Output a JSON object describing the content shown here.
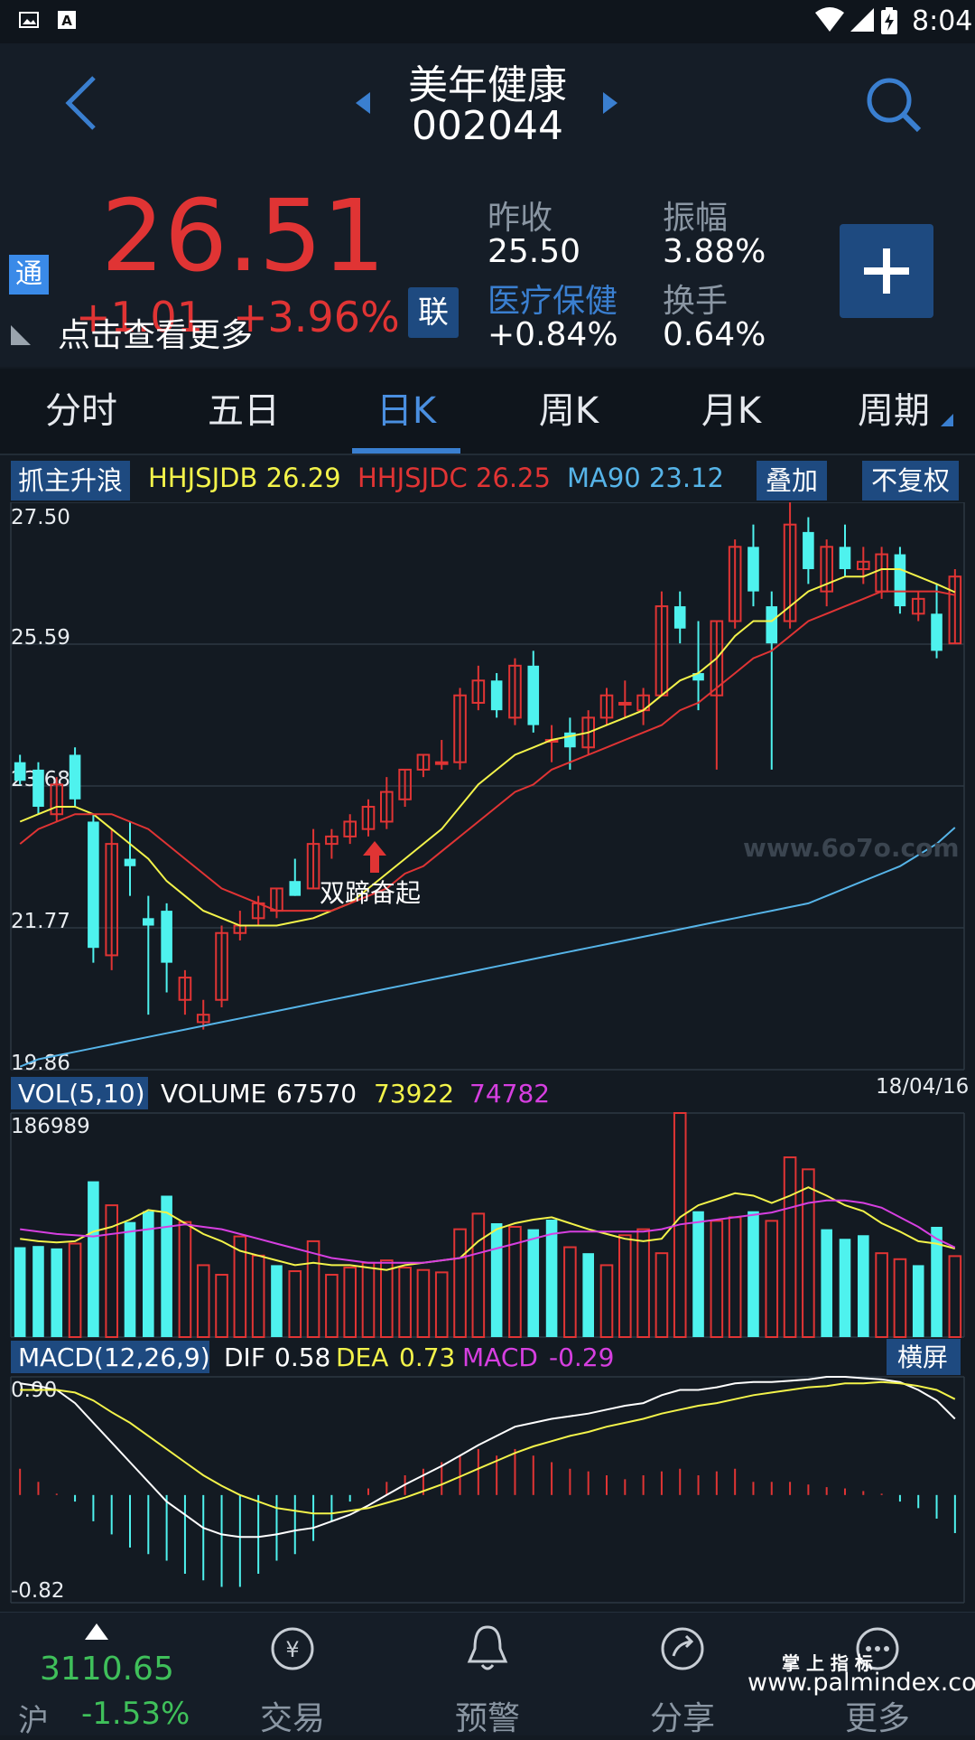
{
  "status": {
    "time": "8:04"
  },
  "header": {
    "name": "美年健康",
    "code": "002044"
  },
  "quote": {
    "price": "26.51",
    "change": "+1.01",
    "change_pct": "+3.96%",
    "tong_badge": "通",
    "lian_badge": "联",
    "more_link": "点击查看更多",
    "prev_close_label": "昨收",
    "prev_close": "25.50",
    "amplitude_label": "振幅",
    "amplitude": "3.88%",
    "sector_label": "医疗保健",
    "sector_change": "+0.84%",
    "turnover_label": "换手",
    "turnover": "0.64%"
  },
  "tabs": [
    {
      "label": "分时"
    },
    {
      "label": "五日"
    },
    {
      "label": "日K",
      "active": true
    },
    {
      "label": "周K"
    },
    {
      "label": "月K"
    },
    {
      "label": "周期"
    }
  ],
  "kline": {
    "indicator_name": "抓主升浪",
    "hhjsjdb_label": "HHJSJDB",
    "hhjsjdb_value": "26.29",
    "hhjsjdc_label": "HHJSJDC",
    "hhjsjdc_value": "26.25",
    "ma90_label": "MA90",
    "ma90_value": "23.12",
    "overlay_button": "叠加",
    "adjust_button": "不复权",
    "y_labels": [
      "27.50",
      "25.59",
      "23.68",
      "21.77",
      "19.86"
    ],
    "signal_text": "双蹄奋起",
    "watermark": "www.6o7o.com"
  },
  "volume": {
    "indicator_name": "VOL(5,10)",
    "volume_label": "VOLUME",
    "volume_value": "67570",
    "ma5_value": "73922",
    "ma10_value": "74782",
    "date": "18/04/16",
    "max_label": "186989"
  },
  "macd": {
    "indicator_name": "MACD(12,26,9)",
    "dif_label": "DIF",
    "dif_value": "0.58",
    "dea_label": "DEA",
    "dea_value": "0.73",
    "macd_label": "MACD",
    "macd_value": "-0.29",
    "landscape_button": "横屏",
    "y_top": "0.90",
    "y_bottom": "-0.82"
  },
  "bottom_nav": {
    "index_value": "3110.65",
    "index_name": "沪",
    "index_change": "-1.53%",
    "trade": "交易",
    "alert": "预警",
    "share": "分享",
    "more": "更多",
    "brand_small": "掌 上 指 标",
    "brand_url": "www.palmindex.com"
  },
  "colors": {
    "up": "#e03434",
    "down": "#4ef2ee",
    "accent": "#3a7fd0",
    "yellow": "#f3f34a",
    "magenta": "#d63fe0",
    "ma90": "#56b4e8"
  },
  "chart_data": [
    {
      "type": "candlestick",
      "title": "日K",
      "ylim": [
        19.86,
        27.5
      ],
      "ohlc": [
        [
          24.0,
          24.1,
          23.7,
          23.75
        ],
        [
          23.9,
          24.0,
          23.3,
          23.4
        ],
        [
          23.3,
          23.8,
          23.2,
          23.7
        ],
        [
          24.1,
          24.2,
          23.4,
          23.5
        ],
        [
          23.2,
          23.3,
          21.3,
          21.5
        ],
        [
          21.4,
          23.1,
          21.2,
          22.9
        ],
        [
          22.7,
          23.2,
          22.2,
          22.6
        ],
        [
          21.9,
          22.2,
          20.6,
          21.8
        ],
        [
          22.0,
          22.1,
          20.9,
          21.3
        ],
        [
          20.8,
          21.2,
          20.6,
          21.1
        ],
        [
          20.5,
          20.8,
          20.4,
          20.6
        ],
        [
          20.8,
          21.8,
          20.7,
          21.7
        ],
        [
          21.7,
          22.0,
          21.6,
          21.8
        ],
        [
          21.9,
          22.2,
          21.8,
          22.1
        ],
        [
          22.0,
          22.3,
          21.9,
          22.3
        ],
        [
          22.4,
          22.7,
          22.2,
          22.2
        ],
        [
          22.3,
          23.1,
          22.3,
          22.9
        ],
        [
          22.9,
          23.1,
          22.7,
          23.0
        ],
        [
          23.0,
          23.3,
          22.9,
          23.2
        ],
        [
          23.1,
          23.5,
          23.0,
          23.4
        ],
        [
          23.2,
          23.8,
          23.1,
          23.6
        ],
        [
          23.5,
          23.9,
          23.4,
          23.9
        ],
        [
          23.9,
          24.1,
          23.8,
          24.1
        ],
        [
          24.0,
          24.3,
          23.9,
          24.0
        ],
        [
          24.0,
          25.0,
          23.9,
          24.9
        ],
        [
          24.8,
          25.3,
          24.7,
          25.1
        ],
        [
          25.1,
          25.2,
          24.6,
          24.7
        ],
        [
          24.6,
          25.4,
          24.5,
          25.3
        ],
        [
          25.3,
          25.5,
          24.4,
          24.5
        ],
        [
          24.3,
          24.5,
          24.0,
          24.3
        ],
        [
          24.4,
          24.6,
          23.9,
          24.2
        ],
        [
          24.2,
          24.7,
          24.1,
          24.6
        ],
        [
          24.6,
          25.0,
          24.5,
          24.9
        ],
        [
          24.8,
          25.1,
          24.6,
          24.8
        ],
        [
          24.7,
          25.0,
          24.5,
          24.9
        ],
        [
          24.9,
          26.3,
          24.9,
          26.1
        ],
        [
          26.1,
          26.3,
          25.6,
          25.8
        ],
        [
          25.2,
          25.9,
          24.7,
          25.1
        ],
        [
          24.9,
          25.9,
          23.9,
          25.9
        ],
        [
          25.9,
          27.0,
          25.8,
          26.9
        ],
        [
          26.9,
          27.2,
          26.1,
          26.3
        ],
        [
          26.1,
          26.3,
          23.9,
          25.6
        ],
        [
          25.9,
          27.5,
          25.8,
          27.2
        ],
        [
          27.1,
          27.3,
          26.4,
          26.6
        ],
        [
          26.3,
          27.0,
          26.1,
          26.9
        ],
        [
          26.9,
          27.2,
          26.5,
          26.6
        ],
        [
          26.6,
          26.9,
          26.4,
          26.7
        ],
        [
          26.3,
          26.9,
          26.2,
          26.8
        ],
        [
          26.8,
          26.9,
          26.0,
          26.1
        ],
        [
          26.0,
          26.3,
          25.9,
          26.2
        ],
        [
          26.0,
          26.4,
          25.4,
          25.5
        ],
        [
          25.6,
          26.6,
          25.6,
          26.5
        ]
      ],
      "series": [
        {
          "name": "HHJSJDB",
          "values": [
            23.2,
            23.3,
            23.4,
            23.4,
            23.3,
            23.1,
            22.9,
            22.7,
            22.4,
            22.2,
            22.0,
            21.9,
            21.8,
            21.8,
            21.8,
            21.85,
            21.9,
            22.0,
            22.1,
            22.3,
            22.5,
            22.7,
            22.9,
            23.1,
            23.4,
            23.7,
            23.9,
            24.1,
            24.2,
            24.3,
            24.35,
            24.4,
            24.5,
            24.6,
            24.7,
            24.9,
            25.1,
            25.2,
            25.4,
            25.7,
            25.9,
            25.9,
            26.1,
            26.3,
            26.4,
            26.5,
            26.5,
            26.6,
            26.6,
            26.5,
            26.4,
            26.29
          ]
        },
        {
          "name": "HHJSJDC",
          "values": [
            22.9,
            23.1,
            23.2,
            23.3,
            23.3,
            23.3,
            23.2,
            23.1,
            22.9,
            22.7,
            22.5,
            22.3,
            22.2,
            22.1,
            22.0,
            22.0,
            22.0,
            22.0,
            22.1,
            22.2,
            22.3,
            22.5,
            22.6,
            22.8,
            23.0,
            23.2,
            23.4,
            23.6,
            23.7,
            23.9,
            24.0,
            24.1,
            24.2,
            24.3,
            24.4,
            24.5,
            24.7,
            24.8,
            25.0,
            25.2,
            25.4,
            25.5,
            25.7,
            25.9,
            26.0,
            26.1,
            26.2,
            26.3,
            26.3,
            26.3,
            26.3,
            26.25
          ]
        },
        {
          "name": "MA90",
          "values": [
            19.9,
            20.0,
            20.05,
            20.1,
            20.15,
            20.2,
            20.25,
            20.3,
            20.35,
            20.4,
            20.45,
            20.5,
            20.55,
            20.6,
            20.65,
            20.7,
            20.75,
            20.8,
            20.85,
            20.9,
            20.95,
            21.0,
            21.05,
            21.1,
            21.15,
            21.2,
            21.25,
            21.3,
            21.35,
            21.4,
            21.45,
            21.5,
            21.55,
            21.6,
            21.65,
            21.7,
            21.75,
            21.8,
            21.85,
            21.9,
            21.95,
            22.0,
            22.05,
            22.1,
            22.2,
            22.3,
            22.4,
            22.5,
            22.6,
            22.75,
            22.9,
            23.12
          ]
        }
      ]
    },
    {
      "type": "bar",
      "title": "VOL(5,10)",
      "ylim": [
        0,
        186989
      ],
      "values": [
        75000,
        76000,
        74000,
        78000,
        130000,
        110000,
        96000,
        105000,
        118000,
        96000,
        60000,
        52000,
        84000,
        68000,
        60000,
        55000,
        80000,
        52000,
        58000,
        62000,
        64000,
        58000,
        56000,
        54000,
        90000,
        103000,
        95000,
        92000,
        90000,
        98000,
        75000,
        70000,
        60000,
        85000,
        90000,
        70000,
        186989,
        105000,
        97000,
        100000,
        105000,
        97000,
        150000,
        140000,
        90000,
        82000,
        85000,
        70000,
        65000,
        60000,
        92000,
        67570
      ],
      "direction": [
        "down",
        "down",
        "down",
        "up",
        "down",
        "up",
        "down",
        "down",
        "down",
        "up",
        "up",
        "up",
        "up",
        "up",
        "down",
        "up",
        "up",
        "up",
        "up",
        "up",
        "up",
        "up",
        "up",
        "up",
        "up",
        "up",
        "down",
        "up",
        "down",
        "down",
        "up",
        "down",
        "up",
        "up",
        "up",
        "up",
        "up",
        "down",
        "up",
        "up",
        "down",
        "up",
        "up",
        "up",
        "down",
        "down",
        "down",
        "up",
        "up",
        "down",
        "down",
        "up"
      ],
      "series": [
        {
          "name": "MA5",
          "values": [
            82000,
            80000,
            79000,
            80000,
            88000,
            92000,
            98000,
            106000,
            104000,
            95000,
            86000,
            80000,
            72000,
            68000,
            64000,
            60000,
            62000,
            60000,
            60000,
            58000,
            56000,
            60000,
            62000,
            64000,
            66000,
            80000,
            90000,
            95000,
            98000,
            100000,
            95000,
            90000,
            86000,
            82000,
            80000,
            82000,
            100000,
            110000,
            115000,
            120000,
            118000,
            112000,
            118000,
            125000,
            118000,
            110000,
            105000,
            95000,
            88000,
            80000,
            78000,
            73922
          ]
        },
        {
          "name": "MA10",
          "values": [
            90000,
            88000,
            86000,
            85000,
            84000,
            86000,
            88000,
            90000,
            92000,
            94000,
            92000,
            90000,
            86000,
            82000,
            78000,
            74000,
            70000,
            66000,
            64000,
            62000,
            62000,
            62000,
            62000,
            64000,
            66000,
            70000,
            74000,
            78000,
            82000,
            86000,
            88000,
            88000,
            88000,
            88000,
            88000,
            90000,
            94000,
            96000,
            98000,
            100000,
            102000,
            104000,
            108000,
            112000,
            114000,
            114000,
            112000,
            108000,
            100000,
            92000,
            82000,
            74782
          ]
        }
      ]
    },
    {
      "type": "bar",
      "title": "MACD(12,26,9)",
      "ylim": [
        -0.82,
        0.9
      ],
      "values": [
        0.2,
        0.1,
        0.01,
        -0.05,
        -0.2,
        -0.3,
        -0.4,
        -0.45,
        -0.5,
        -0.6,
        -0.65,
        -0.7,
        -0.7,
        -0.6,
        -0.5,
        -0.45,
        -0.35,
        -0.2,
        -0.05,
        0.05,
        0.1,
        0.15,
        0.2,
        0.25,
        0.3,
        0.35,
        0.3,
        0.35,
        0.3,
        0.25,
        0.2,
        0.18,
        0.15,
        0.12,
        0.15,
        0.18,
        0.2,
        0.15,
        0.18,
        0.2,
        0.1,
        0.1,
        0.1,
        0.08,
        0.06,
        0.05,
        0.03,
        0.01,
        -0.05,
        -0.1,
        -0.18,
        -0.29
      ],
      "series": [
        {
          "name": "DIF",
          "values": [
            0.85,
            0.83,
            0.8,
            0.7,
            0.55,
            0.4,
            0.25,
            0.1,
            -0.05,
            -0.15,
            -0.25,
            -0.3,
            -0.32,
            -0.32,
            -0.3,
            -0.27,
            -0.25,
            -0.2,
            -0.15,
            -0.08,
            0.0,
            0.08,
            0.15,
            0.22,
            0.3,
            0.38,
            0.45,
            0.52,
            0.55,
            0.58,
            0.6,
            0.62,
            0.65,
            0.68,
            0.7,
            0.76,
            0.8,
            0.8,
            0.82,
            0.85,
            0.86,
            0.86,
            0.87,
            0.88,
            0.9,
            0.9,
            0.89,
            0.88,
            0.86,
            0.8,
            0.72,
            0.58
          ]
        },
        {
          "name": "DEA",
          "values": [
            0.8,
            0.8,
            0.8,
            0.78,
            0.72,
            0.63,
            0.55,
            0.45,
            0.35,
            0.25,
            0.15,
            0.07,
            0.0,
            -0.05,
            -0.1,
            -0.12,
            -0.14,
            -0.14,
            -0.12,
            -0.1,
            -0.06,
            -0.02,
            0.03,
            0.08,
            0.14,
            0.2,
            0.26,
            0.32,
            0.37,
            0.41,
            0.45,
            0.48,
            0.52,
            0.55,
            0.58,
            0.62,
            0.65,
            0.68,
            0.7,
            0.73,
            0.76,
            0.78,
            0.8,
            0.82,
            0.83,
            0.85,
            0.85,
            0.86,
            0.85,
            0.83,
            0.8,
            0.73
          ]
        }
      ]
    }
  ]
}
